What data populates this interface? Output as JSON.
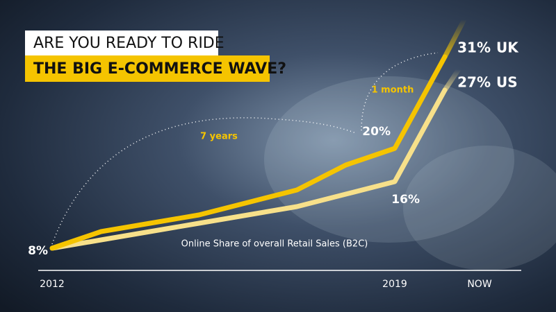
{
  "chart_data": {
    "type": "line",
    "title_lines": [
      "ARE YOU READY TO RIDE",
      "THE BIG E-COMMERCE WAVE?"
    ],
    "subtitle": "Online Share of overall Retail Sales (B2C)",
    "annotations": [
      "7 years",
      "1 month"
    ],
    "categories": [
      "2012",
      null,
      null,
      null,
      null,
      null,
      null,
      "2019",
      "NOW"
    ],
    "ylim": [
      0,
      35
    ],
    "series": [
      {
        "name": "UK",
        "color": "#f5c400",
        "values": [
          8,
          10,
          11,
          12,
          13.5,
          15,
          18,
          20,
          31
        ],
        "value_labels": [
          "8%",
          null,
          null,
          null,
          null,
          null,
          null,
          "20%",
          "31%"
        ]
      },
      {
        "name": "US",
        "color": "#f7e08a",
        "values": [
          8,
          9,
          10,
          11,
          12,
          13,
          14.5,
          16,
          27
        ],
        "value_labels": [
          null,
          null,
          null,
          null,
          null,
          null,
          null,
          "16%",
          "27%"
        ]
      }
    ]
  }
}
